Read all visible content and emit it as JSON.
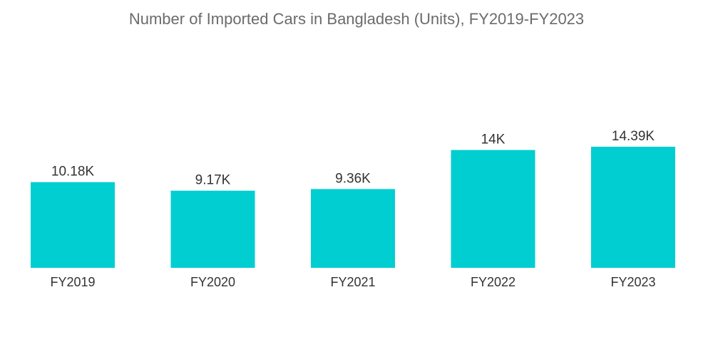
{
  "chart_data": {
    "type": "bar",
    "title": "Number of Imported Cars in Bangladesh (Units), FY2019-FY2023",
    "xlabel": "",
    "ylabel": "",
    "categories": [
      "FY2019",
      "FY2020",
      "FY2021",
      "FY2022",
      "FY2023"
    ],
    "values": [
      10180,
      9170,
      9360,
      14000,
      14390
    ],
    "data_labels": [
      "10.18K",
      "9.17K",
      "9.36K",
      "14K",
      "14.39K"
    ],
    "ylim": [
      0,
      16000
    ],
    "grid": false,
    "legend": "none",
    "bar_color": "#00ced1"
  }
}
